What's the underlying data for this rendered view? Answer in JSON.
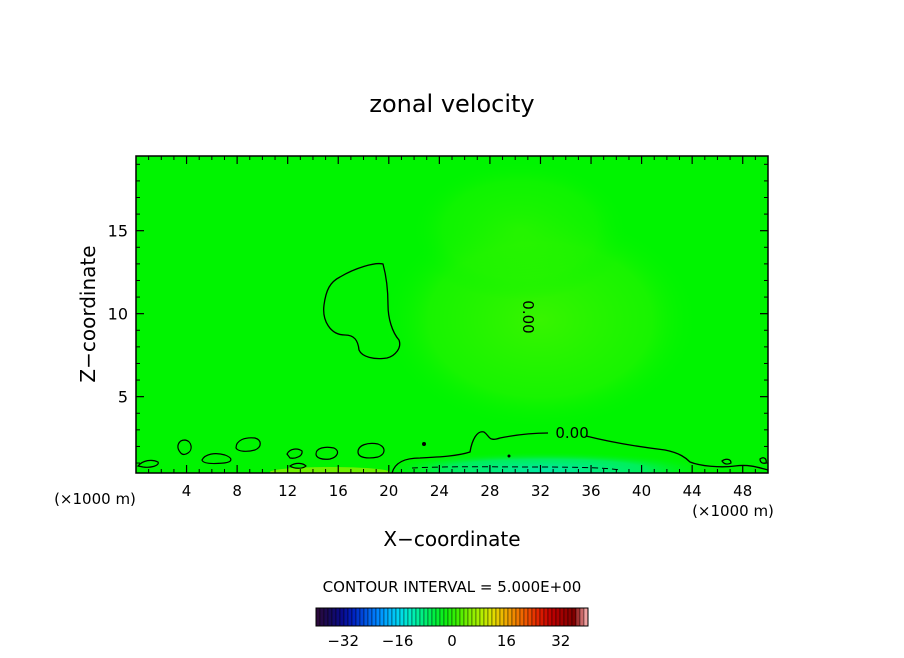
{
  "chart_data": {
    "type": "heatmap",
    "title": "zonal velocity",
    "xlabel": "X−coordinate",
    "ylabel": "Z−coordinate",
    "x_unit_left": "(×1000 m)",
    "x_unit_right": "(×1000 m)",
    "xlim": [
      0,
      50
    ],
    "ylim": [
      0.4,
      19.5
    ],
    "x_ticks": [
      4,
      8,
      12,
      16,
      20,
      24,
      28,
      32,
      36,
      40,
      44,
      48
    ],
    "y_ticks": [
      5,
      10,
      15
    ],
    "contour_interval_text": "CONTOUR INTERVAL = 5.000E+00",
    "contour_labels": [
      {
        "text": "0.00",
        "x": 31,
        "z": 9.8,
        "rotation": 90
      },
      {
        "text": "0.00",
        "x": 34.5,
        "z": 2.8,
        "rotation": 0
      }
    ],
    "field_range": [
      -40,
      40
    ],
    "background_value": 0,
    "colorbar": {
      "ticks": [
        -32,
        -16,
        0,
        16,
        32
      ],
      "tick_labels": [
        "−32",
        "−16",
        "0",
        "16",
        "32"
      ],
      "min": -40,
      "max": 40,
      "colors": [
        "#2b0a3d",
        "#160a5a",
        "#0a0a8a",
        "#0020c0",
        "#0050e0",
        "#0080ff",
        "#00b0ff",
        "#00d8f0",
        "#00f0c0",
        "#00f080",
        "#00f040",
        "#10f010",
        "#40f000",
        "#80f000",
        "#b0f000",
        "#e0e000",
        "#f0b000",
        "#f08000",
        "#f05000",
        "#e02000",
        "#c00000",
        "#a00000",
        "#800000",
        "#f0a0a0"
      ]
    },
    "color_legend": {
      "background_green": "#00f400",
      "positive_tint": "#33f400",
      "negative_tint": "#00f060",
      "strong_negative": "#00e6a0",
      "positive_surface": "#a0f000"
    }
  }
}
